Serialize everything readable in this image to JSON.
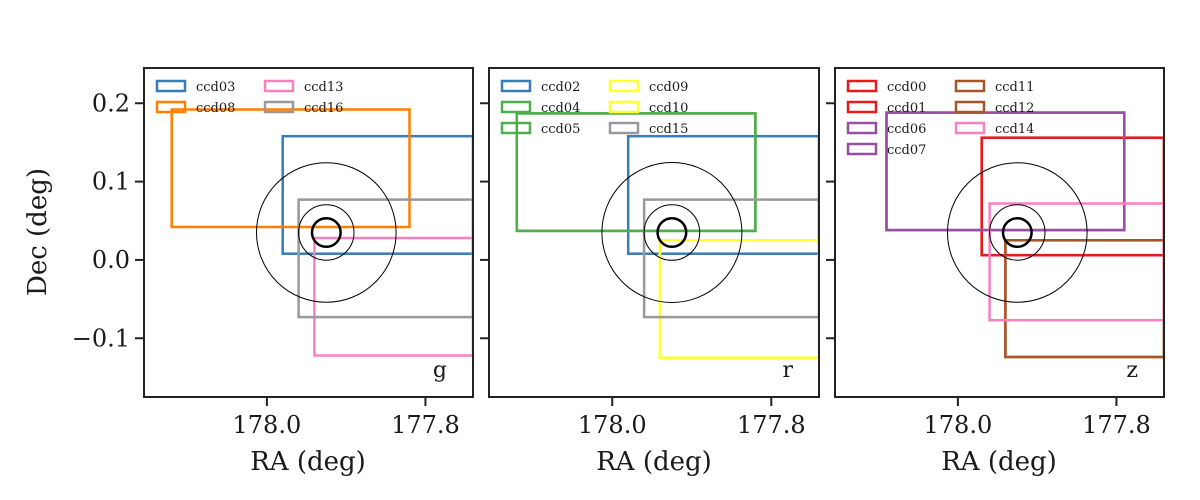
{
  "chart_data": [
    {
      "type": "rectangles",
      "panel": "g",
      "band_label": "g",
      "xlabel": "RA (deg)",
      "ylabel": "Dec (deg)",
      "xlim": [
        178.155,
        177.74
      ],
      "ylim": [
        -0.175,
        0.245
      ],
      "x_inverted": true,
      "xticks": [
        {
          "value": 178.0,
          "label": "178.0"
        },
        {
          "value": 177.8,
          "label": "177.8"
        }
      ],
      "yticks": [
        {
          "value": 0.2,
          "label": "0.2"
        },
        {
          "value": 0.1,
          "label": "0.1"
        },
        {
          "value": 0.0,
          "label": "0.0"
        },
        {
          "value": -0.1,
          "label": "−0.1"
        }
      ],
      "show_yticklabels": true,
      "circles": {
        "ra": 177.925,
        "dec": 0.035,
        "radii": [
          0.018,
          0.035,
          0.088
        ],
        "widths": [
          2.5,
          1,
          1
        ]
      },
      "legend": {
        "placement": "top-left",
        "columns": 2,
        "entries": [
          "ccd03",
          "ccd08",
          "ccd13",
          "ccd16"
        ]
      },
      "ccds": [
        {
          "name": "ccd03",
          "color": "#377eb8",
          "ra": [
            177.98,
            177.74
          ],
          "dec": [
            0.008,
            0.158
          ]
        },
        {
          "name": "ccd08",
          "color": "#ff7f00",
          "ra": [
            178.12,
            177.82
          ],
          "dec": [
            0.042,
            0.192
          ]
        },
        {
          "name": "ccd13",
          "color": "#f781bf",
          "ra": [
            177.94,
            177.74
          ],
          "dec": [
            -0.122,
            0.028
          ]
        },
        {
          "name": "ccd16",
          "color": "#999999",
          "ra": [
            177.96,
            177.74
          ],
          "dec": [
            -0.073,
            0.077
          ]
        }
      ]
    },
    {
      "type": "rectangles",
      "panel": "r",
      "band_label": "r",
      "xlabel": "RA (deg)",
      "ylabel": "",
      "xlim": [
        178.155,
        177.74
      ],
      "ylim": [
        -0.175,
        0.245
      ],
      "x_inverted": true,
      "xticks": [
        {
          "value": 178.0,
          "label": "178.0"
        },
        {
          "value": 177.8,
          "label": "177.8"
        }
      ],
      "yticks": [
        {
          "value": 0.2,
          "label": ""
        },
        {
          "value": 0.1,
          "label": ""
        },
        {
          "value": 0.0,
          "label": ""
        },
        {
          "value": -0.1,
          "label": ""
        }
      ],
      "show_yticklabels": false,
      "circles": {
        "ra": 177.925,
        "dec": 0.035,
        "radii": [
          0.018,
          0.035,
          0.088
        ],
        "widths": [
          2.5,
          1,
          1
        ]
      },
      "legend": {
        "placement": "top-left",
        "columns": 2,
        "entries": [
          "ccd02",
          "ccd04",
          "ccd05",
          "ccd09",
          "ccd10",
          "ccd15"
        ]
      },
      "ccds": [
        {
          "name": "ccd02",
          "color": "#377eb8",
          "ra": [
            177.98,
            177.74
          ],
          "dec": [
            0.008,
            0.158
          ]
        },
        {
          "name": "ccd04",
          "color": "#4daf4a",
          "ra": [
            178.12,
            177.82
          ],
          "dec": [
            0.037,
            0.187
          ]
        },
        {
          "name": "ccd05",
          "color": "#4daf4a",
          "ra": [
            178.12,
            177.82
          ],
          "dec": [
            0.037,
            0.187
          ]
        },
        {
          "name": "ccd09",
          "color": "#ffff33",
          "ra": [
            177.94,
            177.74
          ],
          "dec": [
            -0.125,
            0.025
          ]
        },
        {
          "name": "ccd10",
          "color": "#ffff33",
          "ra": [
            177.94,
            177.74
          ],
          "dec": [
            -0.125,
            0.025
          ]
        },
        {
          "name": "ccd15",
          "color": "#999999",
          "ra": [
            177.96,
            177.74
          ],
          "dec": [
            -0.073,
            0.077
          ]
        }
      ]
    },
    {
      "type": "rectangles",
      "panel": "z",
      "band_label": "z",
      "xlabel": "RA (deg)",
      "ylabel": "",
      "xlim": [
        178.155,
        177.74
      ],
      "ylim": [
        -0.175,
        0.245
      ],
      "x_inverted": true,
      "xticks": [
        {
          "value": 178.0,
          "label": "178.0"
        },
        {
          "value": 177.8,
          "label": "177.8"
        }
      ],
      "yticks": [
        {
          "value": 0.2,
          "label": ""
        },
        {
          "value": 0.1,
          "label": ""
        },
        {
          "value": 0.0,
          "label": ""
        },
        {
          "value": -0.1,
          "label": ""
        }
      ],
      "show_yticklabels": false,
      "circles": {
        "ra": 177.925,
        "dec": 0.035,
        "radii": [
          0.018,
          0.035,
          0.088
        ],
        "widths": [
          2.5,
          1,
          1
        ]
      },
      "legend": {
        "placement": "top-left",
        "columns": 2,
        "entries": [
          "ccd00",
          "ccd01",
          "ccd06",
          "ccd07",
          "ccd11",
          "ccd12",
          "ccd14"
        ]
      },
      "ccds": [
        {
          "name": "ccd00",
          "color": "#e41a1c",
          "ra": [
            177.97,
            177.74
          ],
          "dec": [
            0.006,
            0.156
          ]
        },
        {
          "name": "ccd01",
          "color": "#e41a1c",
          "ra": [
            177.97,
            177.74
          ],
          "dec": [
            0.006,
            0.156
          ]
        },
        {
          "name": "ccd06",
          "color": "#984ea3",
          "ra": [
            178.09,
            177.79
          ],
          "dec": [
            0.038,
            0.188
          ]
        },
        {
          "name": "ccd07",
          "color": "#984ea3",
          "ra": [
            178.09,
            177.79
          ],
          "dec": [
            0.038,
            0.188
          ]
        },
        {
          "name": "ccd11",
          "color": "#a65628",
          "ra": [
            177.94,
            177.74
          ],
          "dec": [
            -0.124,
            0.025
          ]
        },
        {
          "name": "ccd12",
          "color": "#a65628",
          "ra": [
            177.94,
            177.74
          ],
          "dec": [
            -0.124,
            0.025
          ]
        },
        {
          "name": "ccd14",
          "color": "#f781bf",
          "ra": [
            177.96,
            177.74
          ],
          "dec": [
            -0.077,
            0.072
          ]
        }
      ]
    }
  ]
}
